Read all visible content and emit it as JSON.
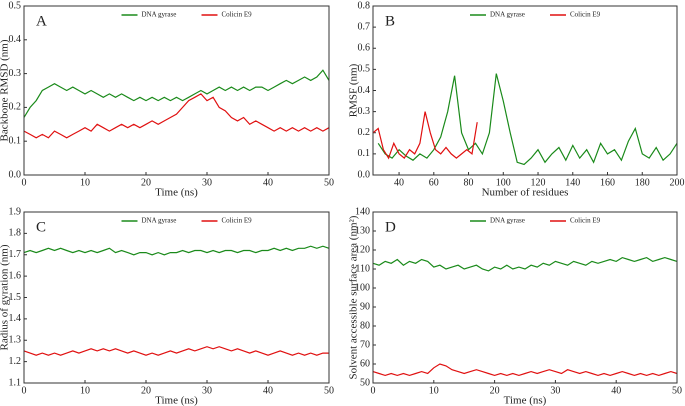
{
  "chart_data": [
    {
      "type": "line",
      "panel": "A",
      "xlabel": "Time (ns)",
      "ylabel": "Backbone RMSD (nm)",
      "x": [
        0,
        1,
        2,
        3,
        4,
        5,
        6,
        7,
        8,
        9,
        10,
        11,
        12,
        13,
        14,
        15,
        16,
        17,
        18,
        19,
        20,
        21,
        22,
        23,
        24,
        25,
        26,
        27,
        28,
        29,
        30,
        31,
        32,
        33,
        34,
        35,
        36,
        37,
        38,
        39,
        40,
        41,
        42,
        43,
        44,
        45,
        46,
        47,
        48,
        49,
        50
      ],
      "xlim": [
        0,
        50
      ],
      "xticks": [
        0,
        10,
        20,
        30,
        40,
        50
      ],
      "ylim": [
        0,
        0.5
      ],
      "yticks": [
        {
          "value": 0,
          "label": "0.0"
        },
        0.1,
        0.2,
        0.3,
        0.4,
        0.5
      ],
      "legend": "top",
      "series": [
        {
          "name": "DNA gyrase",
          "color": "#1a8a1a",
          "values": [
            0.17,
            0.2,
            0.22,
            0.25,
            0.26,
            0.27,
            0.26,
            0.25,
            0.26,
            0.25,
            0.24,
            0.25,
            0.24,
            0.23,
            0.24,
            0.23,
            0.24,
            0.23,
            0.22,
            0.23,
            0.22,
            0.23,
            0.22,
            0.23,
            0.22,
            0.23,
            0.22,
            0.23,
            0.24,
            0.25,
            0.24,
            0.25,
            0.26,
            0.25,
            0.26,
            0.25,
            0.26,
            0.25,
            0.26,
            0.26,
            0.25,
            0.26,
            0.27,
            0.28,
            0.27,
            0.28,
            0.29,
            0.28,
            0.29,
            0.31,
            0.28
          ]
        },
        {
          "name": "Colicin E9",
          "color": "#e01010",
          "values": [
            0.13,
            0.12,
            0.11,
            0.12,
            0.11,
            0.13,
            0.12,
            0.11,
            0.12,
            0.13,
            0.14,
            0.13,
            0.15,
            0.14,
            0.13,
            0.14,
            0.15,
            0.14,
            0.15,
            0.14,
            0.15,
            0.16,
            0.15,
            0.16,
            0.17,
            0.18,
            0.2,
            0.22,
            0.23,
            0.24,
            0.22,
            0.23,
            0.2,
            0.19,
            0.17,
            0.16,
            0.17,
            0.15,
            0.16,
            0.15,
            0.14,
            0.13,
            0.14,
            0.13,
            0.14,
            0.13,
            0.14,
            0.13,
            0.14,
            0.13,
            0.14
          ]
        }
      ]
    },
    {
      "type": "line",
      "panel": "B",
      "xlabel": "Number of residues",
      "ylabel": "RMSF (nm)",
      "xlim": [
        25,
        200
      ],
      "xticks": [
        40,
        60,
        80,
        100,
        120,
        140,
        160,
        180,
        200
      ],
      "ylim": [
        0,
        0.8
      ],
      "yticks": [
        {
          "value": 0,
          "label": "0.0"
        },
        0.1,
        0.2,
        0.3,
        0.4,
        0.5,
        0.6,
        0.7,
        0.8
      ],
      "legend": "top",
      "series": [
        {
          "name": "DNA gyrase",
          "color": "#1a8a1a",
          "x": [
            28,
            32,
            36,
            40,
            44,
            48,
            52,
            56,
            60,
            64,
            68,
            72,
            76,
            80,
            84,
            88,
            92,
            96,
            100,
            104,
            108,
            112,
            116,
            120,
            124,
            128,
            132,
            136,
            140,
            144,
            148,
            152,
            156,
            160,
            164,
            168,
            172,
            176,
            180,
            184,
            188,
            192,
            196,
            200
          ],
          "values": [
            0.15,
            0.1,
            0.08,
            0.12,
            0.09,
            0.07,
            0.1,
            0.08,
            0.12,
            0.18,
            0.3,
            0.47,
            0.2,
            0.12,
            0.15,
            0.1,
            0.2,
            0.48,
            0.35,
            0.2,
            0.06,
            0.05,
            0.08,
            0.12,
            0.06,
            0.1,
            0.13,
            0.07,
            0.14,
            0.08,
            0.12,
            0.06,
            0.15,
            0.1,
            0.12,
            0.07,
            0.16,
            0.22,
            0.1,
            0.08,
            0.13,
            0.07,
            0.1,
            0.15
          ]
        },
        {
          "name": "Colicin E9",
          "color": "#e01010",
          "x": [
            25,
            28,
            31,
            34,
            37,
            40,
            43,
            46,
            49,
            52,
            55,
            58,
            61,
            64,
            67,
            70,
            73,
            76,
            79,
            82,
            85
          ],
          "values": [
            0.2,
            0.22,
            0.12,
            0.08,
            0.15,
            0.1,
            0.08,
            0.12,
            0.1,
            0.15,
            0.3,
            0.2,
            0.12,
            0.1,
            0.13,
            0.1,
            0.08,
            0.1,
            0.12,
            0.1,
            0.25
          ]
        }
      ]
    },
    {
      "type": "line",
      "panel": "C",
      "xlabel": "Time (ns)",
      "ylabel": "Radius of gyration (nm)",
      "x": [
        0,
        1,
        2,
        3,
        4,
        5,
        6,
        7,
        8,
        9,
        10,
        11,
        12,
        13,
        14,
        15,
        16,
        17,
        18,
        19,
        20,
        21,
        22,
        23,
        24,
        25,
        26,
        27,
        28,
        29,
        30,
        31,
        32,
        33,
        34,
        35,
        36,
        37,
        38,
        39,
        40,
        41,
        42,
        43,
        44,
        45,
        46,
        47,
        48,
        49,
        50
      ],
      "xlim": [
        0,
        50
      ],
      "xticks": [
        0,
        10,
        20,
        30,
        40,
        50
      ],
      "ylim": [
        1.1,
        1.9
      ],
      "yticks": [
        1.1,
        1.2,
        1.3,
        1.4,
        1.5,
        1.6,
        1.7,
        1.8,
        1.9
      ],
      "legend": "top",
      "series": [
        {
          "name": "DNA gyrase",
          "color": "#1a8a1a",
          "values": [
            1.71,
            1.72,
            1.71,
            1.72,
            1.73,
            1.72,
            1.73,
            1.72,
            1.71,
            1.72,
            1.71,
            1.72,
            1.71,
            1.72,
            1.73,
            1.71,
            1.72,
            1.71,
            1.7,
            1.71,
            1.71,
            1.7,
            1.71,
            1.7,
            1.71,
            1.71,
            1.72,
            1.71,
            1.72,
            1.72,
            1.71,
            1.72,
            1.71,
            1.72,
            1.72,
            1.71,
            1.72,
            1.72,
            1.71,
            1.72,
            1.72,
            1.73,
            1.72,
            1.73,
            1.72,
            1.73,
            1.73,
            1.74,
            1.73,
            1.74,
            1.73
          ]
        },
        {
          "name": "Colicin E9",
          "color": "#e01010",
          "values": [
            1.25,
            1.24,
            1.23,
            1.24,
            1.23,
            1.24,
            1.23,
            1.24,
            1.25,
            1.24,
            1.25,
            1.26,
            1.25,
            1.26,
            1.25,
            1.26,
            1.25,
            1.24,
            1.25,
            1.24,
            1.23,
            1.24,
            1.23,
            1.24,
            1.25,
            1.24,
            1.25,
            1.26,
            1.25,
            1.26,
            1.27,
            1.26,
            1.27,
            1.26,
            1.25,
            1.26,
            1.25,
            1.24,
            1.25,
            1.24,
            1.23,
            1.24,
            1.25,
            1.24,
            1.23,
            1.24,
            1.23,
            1.24,
            1.23,
            1.24,
            1.24
          ]
        }
      ]
    },
    {
      "type": "line",
      "panel": "D",
      "xlabel": "Time (ns)",
      "ylabel": "Solvent accessible surface area (nm²)",
      "x": [
        0,
        1,
        2,
        3,
        4,
        5,
        6,
        7,
        8,
        9,
        10,
        11,
        12,
        13,
        14,
        15,
        16,
        17,
        18,
        19,
        20,
        21,
        22,
        23,
        24,
        25,
        26,
        27,
        28,
        29,
        30,
        31,
        32,
        33,
        34,
        35,
        36,
        37,
        38,
        39,
        40,
        41,
        42,
        43,
        44,
        45,
        46,
        47,
        48,
        49,
        50
      ],
      "xlim": [
        0,
        50
      ],
      "xticks": [
        0,
        10,
        20,
        30,
        40,
        50
      ],
      "ylim": [
        50,
        140
      ],
      "yticks": [
        50,
        60,
        70,
        80,
        90,
        100,
        110,
        120,
        130,
        140
      ],
      "legend": "top",
      "series": [
        {
          "name": "DNA gyrase",
          "color": "#1a8a1a",
          "values": [
            113,
            112,
            114,
            113,
            115,
            112,
            114,
            113,
            115,
            114,
            111,
            112,
            110,
            111,
            112,
            110,
            111,
            112,
            110,
            109,
            111,
            110,
            112,
            110,
            111,
            110,
            112,
            111,
            113,
            112,
            114,
            113,
            112,
            114,
            113,
            112,
            114,
            113,
            114,
            115,
            114,
            116,
            115,
            114,
            115,
            116,
            114,
            115,
            116,
            115,
            114
          ]
        },
        {
          "name": "Colicin E9",
          "color": "#e01010",
          "values": [
            56,
            55,
            54,
            55,
            54,
            55,
            54,
            55,
            56,
            55,
            58,
            60,
            59,
            57,
            56,
            55,
            56,
            57,
            56,
            55,
            54,
            55,
            54,
            55,
            54,
            55,
            56,
            55,
            56,
            57,
            56,
            55,
            57,
            56,
            55,
            56,
            55,
            54,
            55,
            54,
            55,
            56,
            55,
            54,
            55,
            54,
            55,
            54,
            55,
            56,
            55
          ]
        }
      ]
    }
  ]
}
